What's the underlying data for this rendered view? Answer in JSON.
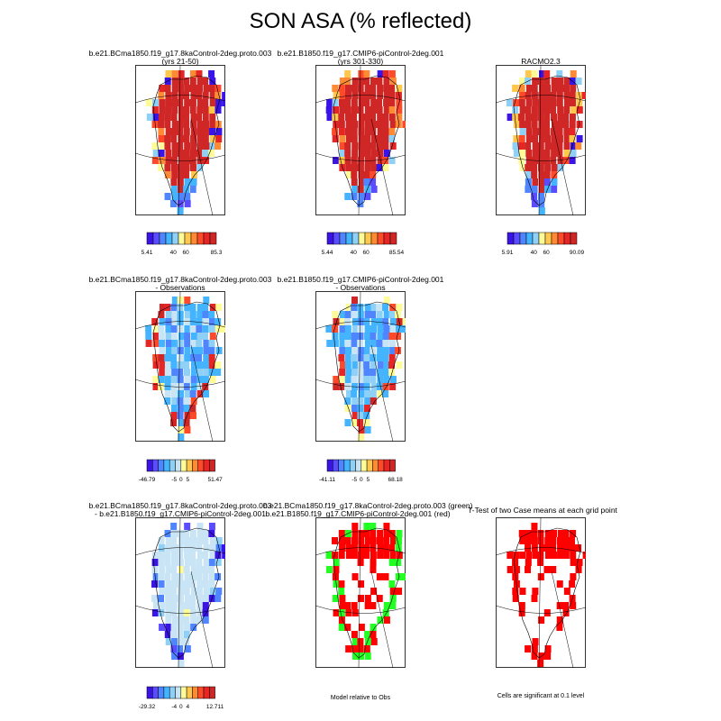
{
  "title": "SON ASA (% reflected)",
  "colors": {
    "main_scale": [
      "#3a13e6",
      "#5a4cff",
      "#4f86ff",
      "#44b4ff",
      "#8fd0f7",
      "#fffb96",
      "#ffc74c",
      "#ff8a34",
      "#ff4a2a",
      "#e62525",
      "#cf2626"
    ],
    "diff_scale": [
      "#3a13e6",
      "#5a4cff",
      "#4f86ff",
      "#44b4ff",
      "#8fd0f7",
      "#c8e4f5",
      "#fffb96",
      "#ffc74c",
      "#ff8a34",
      "#ff4a2a",
      "#e62525",
      "#cf2626"
    ],
    "green": "#22ff22",
    "red": "#ff0000"
  },
  "rows": [
    {
      "panels": [
        {
          "line1": "b.e21.BCma1850.f19_g17.8kaControl-2deg.proto.003",
          "line2": "(yrs 21-50)",
          "cbar": [
            "5.41",
            "40",
            "60",
            "85.3"
          ],
          "fill": "abs"
        },
        {
          "line1": "b.e21.B1850.f19_g17.CMIP6-piControl-2deg.001",
          "line2": "(yrs 301-330)",
          "cbar": [
            "5.44",
            "40",
            "60",
            "85.54"
          ],
          "fill": "abs"
        },
        {
          "line1": "RACMO2.3",
          "line2": "",
          "cbar": [
            "5.91",
            "40",
            "60",
            "90.09"
          ],
          "fill": "abs_obs"
        }
      ]
    },
    {
      "panels": [
        {
          "line1": "b.e21.BCma1850.f19_g17.8kaControl-2deg.proto.003",
          "line2": "- Observations",
          "cbar": [
            "-46.79",
            "-5",
            "0",
            "5",
            "51.47"
          ],
          "fill": "bias"
        },
        {
          "line1": "b.e21.B1850.f19_g17.CMIP6-piControl-2deg.001",
          "line2": "- Observations",
          "cbar": [
            "-41.11",
            "-5",
            "0",
            "5",
            "68.18"
          ],
          "fill": "bias"
        }
      ]
    },
    {
      "panels": [
        {
          "line1": "b.e21.BCma1850.f19_g17.8kaControl-2deg.proto.003",
          "line2": "- b.e21.B1850.f19_g17.CMIP6-piControl-2deg.001",
          "cbar": [
            "-29.32",
            "-4",
            "0",
            "4",
            "12.711"
          ],
          "fill": "diff"
        },
        {
          "line1": "b.e21.BCma1850.f19_g17.8kaControl-2deg.proto.003 (green)",
          "line2": "b.e21.B1850.f19_g17.CMIP6-piControl-2deg.001 (red)",
          "note": "Model relative to Obs",
          "fill": "greenred"
        },
        {
          "line1": "T-Test of two Case means at each grid point",
          "line2": "",
          "note": "Cells are significant at 0.1 level",
          "fill": "ttest"
        }
      ]
    }
  ]
}
